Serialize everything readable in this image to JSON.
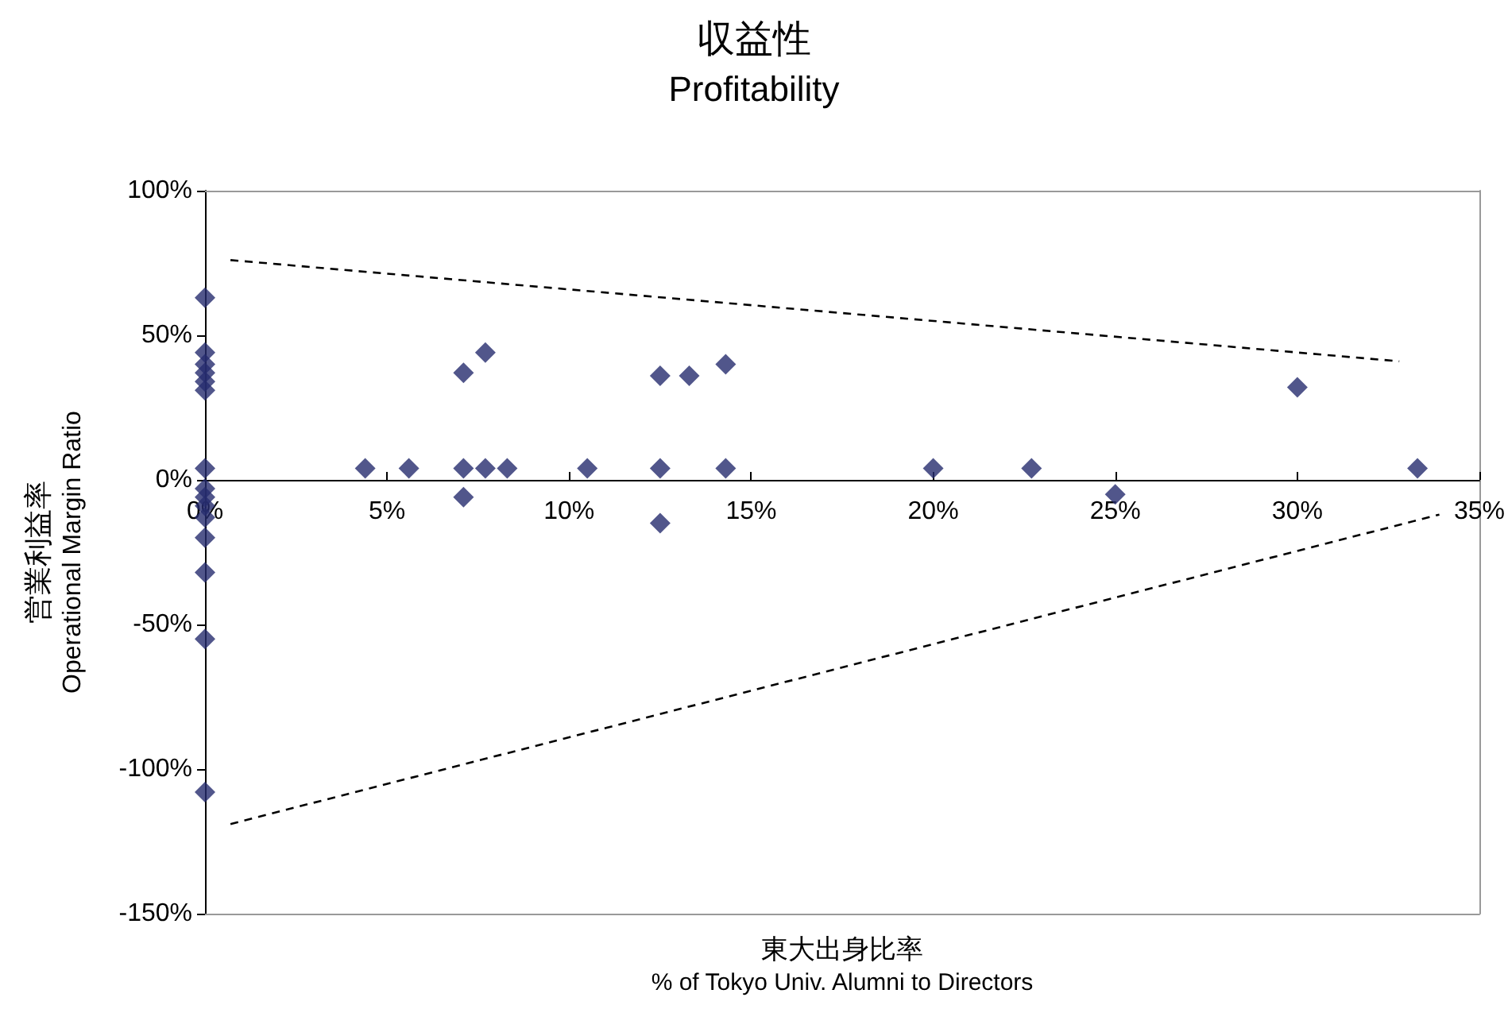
{
  "chart_data": {
    "type": "scatter",
    "title": "収益性",
    "subtitle": "Profitability",
    "xlabel": "東大出身比率\n% of Tokyo Univ. Alumni to Directors",
    "ylabel": "営業利益率\nOperational Margin Ratio",
    "marker": "diamond",
    "grid": false,
    "series": [
      {
        "color": "#262c6e",
        "x": [
          0,
          0,
          0,
          0,
          0,
          0,
          0,
          0,
          0,
          0,
          0,
          0,
          0,
          0,
          0,
          4.4,
          5.6,
          7.1,
          7.1,
          7.1,
          7.7,
          7.7,
          8.3,
          10.5,
          12.5,
          12.5,
          12.5,
          13.3,
          14.3,
          14.3,
          20,
          22.7,
          25,
          30,
          33.3
        ],
        "values": [
          63,
          44,
          40,
          37,
          34,
          31,
          4,
          -3,
          -6,
          -9,
          -20,
          -32,
          -55,
          -108,
          -13,
          4,
          4,
          4,
          37,
          -6,
          44,
          4,
          4,
          4,
          36,
          4,
          -15,
          36,
          40,
          4,
          4,
          4,
          -5,
          32,
          4
        ]
      },
      {
        "type": "line",
        "color": "#000000",
        "line_style": "dashed",
        "marker": "none",
        "x": [
          0.7,
          32.8
        ],
        "values": [
          76,
          41
        ]
      },
      {
        "type": "line",
        "color": "#000000",
        "line_style": "dashed",
        "marker": "none",
        "x": [
          0.7,
          33.9
        ],
        "values": [
          -119,
          -12
        ]
      }
    ],
    "xlim": [
      0,
      35
    ],
    "xticks": [
      {
        "value": 0,
        "label": "0%"
      },
      {
        "value": 5,
        "label": "5%"
      },
      {
        "value": 10,
        "label": "10%"
      },
      {
        "value": 15,
        "label": "15%"
      },
      {
        "value": 20,
        "label": "20%"
      },
      {
        "value": 25,
        "label": "25%"
      },
      {
        "value": 30,
        "label": "30%"
      },
      {
        "value": 35,
        "label": "35%"
      }
    ],
    "ylim": [
      -150,
      100
    ],
    "yticks": [
      {
        "value": -150,
        "label": "-150%"
      },
      {
        "value": -100,
        "label": "-100%"
      },
      {
        "value": -50,
        "label": "-50%"
      },
      {
        "value": 0,
        "label": "0%"
      },
      {
        "value": 50,
        "label": "50%"
      },
      {
        "value": 100,
        "label": "100%"
      }
    ]
  }
}
